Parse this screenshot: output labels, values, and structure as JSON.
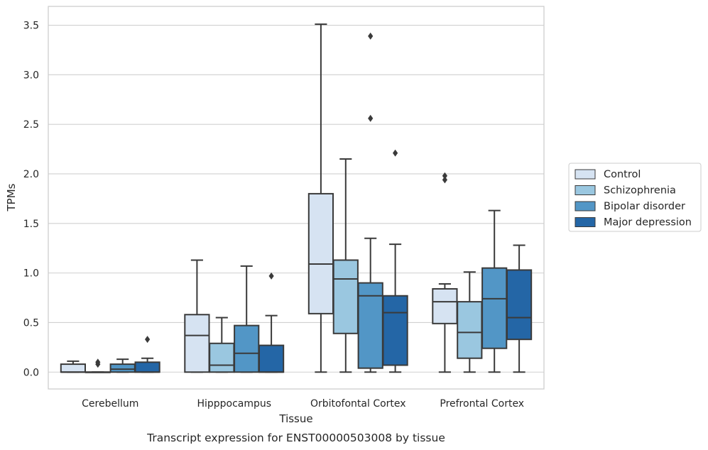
{
  "chart_data": {
    "type": "boxplot",
    "title": "",
    "caption": "Transcript expression for ENST00000503008 by tissue",
    "xlabel": "Tissue",
    "ylabel": "TPMs",
    "ylim": [
      -0.17,
      3.69
    ],
    "yticks": [
      "0.0",
      "0.5",
      "1.0",
      "1.5",
      "2.0",
      "2.5",
      "3.0",
      "3.5"
    ],
    "grid": "horizontal",
    "legend_position": "right",
    "categories": [
      "Cerebellum",
      "Hipppocampus",
      "Orbitofontal Cortex",
      "Prefrontal Cortex"
    ],
    "series": [
      {
        "name": "Control",
        "color": "#d6e3f2",
        "boxes": [
          {
            "whislo": 0.0,
            "q1": 0.0,
            "med": 0.0,
            "q3": 0.08,
            "whishi": 0.11,
            "fliers": []
          },
          {
            "whislo": 0.0,
            "q1": 0.0,
            "med": 0.37,
            "q3": 0.58,
            "whishi": 1.13,
            "fliers": []
          },
          {
            "whislo": 0.0,
            "q1": 0.59,
            "med": 1.09,
            "q3": 1.8,
            "whishi": 3.51,
            "fliers": []
          },
          {
            "whislo": 0.0,
            "q1": 0.49,
            "med": 0.71,
            "q3": 0.84,
            "whishi": 0.89,
            "fliers": [
              1.94,
              1.98
            ]
          }
        ]
      },
      {
        "name": "Schizophrenia",
        "color": "#9ac7e0",
        "boxes": [
          {
            "whislo": 0.0,
            "q1": 0.0,
            "med": 0.0,
            "q3": 0.0,
            "whishi": 0.0,
            "fliers": [
              0.08,
              0.1
            ]
          },
          {
            "whislo": 0.0,
            "q1": 0.0,
            "med": 0.07,
            "q3": 0.29,
            "whishi": 0.55,
            "fliers": []
          },
          {
            "whislo": 0.0,
            "q1": 0.39,
            "med": 0.94,
            "q3": 1.13,
            "whishi": 2.15,
            "fliers": []
          },
          {
            "whislo": 0.0,
            "q1": 0.14,
            "med": 0.4,
            "q3": 0.71,
            "whishi": 1.01,
            "fliers": []
          }
        ]
      },
      {
        "name": "Bipolar disorder",
        "color": "#5296c6",
        "boxes": [
          {
            "whislo": 0.0,
            "q1": 0.0,
            "med": 0.03,
            "q3": 0.08,
            "whishi": 0.13,
            "fliers": []
          },
          {
            "whislo": 0.0,
            "q1": 0.0,
            "med": 0.19,
            "q3": 0.47,
            "whishi": 1.07,
            "fliers": []
          },
          {
            "whislo": 0.0,
            "q1": 0.04,
            "med": 0.77,
            "q3": 0.9,
            "whishi": 1.35,
            "fliers": [
              2.56,
              3.39
            ]
          },
          {
            "whislo": 0.0,
            "q1": 0.24,
            "med": 0.74,
            "q3": 1.05,
            "whishi": 1.63,
            "fliers": []
          }
        ]
      },
      {
        "name": "Major depression",
        "color": "#2466a6",
        "boxes": [
          {
            "whislo": 0.0,
            "q1": 0.0,
            "med": 0.0,
            "q3": 0.1,
            "whishi": 0.14,
            "fliers": [
              0.33
            ]
          },
          {
            "whislo": 0.0,
            "q1": 0.0,
            "med": 0.0,
            "q3": 0.27,
            "whishi": 0.57,
            "fliers": [
              0.97
            ]
          },
          {
            "whislo": 0.0,
            "q1": 0.07,
            "med": 0.6,
            "q3": 0.77,
            "whishi": 1.29,
            "fliers": [
              2.21
            ]
          },
          {
            "whislo": 0.0,
            "q1": 0.33,
            "med": 0.55,
            "q3": 1.03,
            "whishi": 1.28,
            "fliers": []
          }
        ]
      }
    ]
  }
}
